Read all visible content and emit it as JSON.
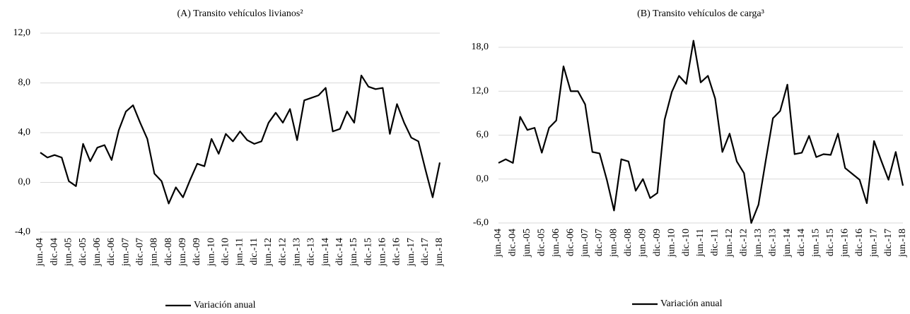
{
  "chart_data": [
    {
      "type": "line",
      "title": "(A) Transito vehículos livianos²",
      "categories": [
        "jun.-04",
        null,
        "dic.-04",
        null,
        "jun.-05",
        null,
        "dic.-05",
        null,
        "jun.-06",
        null,
        "dic.-06",
        null,
        "jun.-07",
        null,
        "dic.-07",
        null,
        "jun.-08",
        null,
        "dic.-08",
        null,
        "jun.-09",
        null,
        "dic.-09",
        null,
        "jun.-10",
        null,
        "dic.-10",
        null,
        "jun.-11",
        null,
        "dic.-11",
        null,
        "jun.-12",
        null,
        "dic.-12",
        null,
        "jun.-13",
        null,
        "dic.-13",
        null,
        "jun.-14",
        null,
        "dic.-14",
        null,
        "jun.-15",
        null,
        "dic.-15",
        null,
        "jun.-16",
        null,
        "dic.-16",
        null,
        "jun.-17",
        null,
        "dic.-17",
        null,
        "jun.-18"
      ],
      "series": [
        {
          "name": "Variación anual",
          "color": "#000000",
          "values": [
            2.4,
            2.0,
            2.2,
            2.0,
            0.1,
            -0.3,
            3.1,
            1.7,
            2.8,
            3.0,
            1.8,
            4.2,
            5.7,
            6.2,
            4.8,
            3.5,
            0.7,
            0.1,
            -1.7,
            -0.4,
            -1.2,
            0.2,
            1.5,
            1.3,
            3.5,
            2.3,
            3.9,
            3.3,
            4.1,
            3.4,
            3.1,
            3.3,
            4.8,
            5.6,
            4.8,
            5.9,
            3.4,
            6.6,
            6.8,
            7.0,
            7.6,
            4.1,
            4.3,
            5.7,
            4.8,
            8.6,
            7.7,
            7.5,
            7.6,
            3.9,
            6.3,
            4.8,
            3.6,
            3.3,
            1.0,
            -1.2,
            1.6
          ]
        }
      ],
      "ylim": [
        -4,
        12
      ],
      "yticks": [
        {
          "value": -4,
          "label": "-4,0"
        },
        {
          "value": 0,
          "label": "0,0"
        },
        {
          "value": 4,
          "label": "4,0"
        },
        {
          "value": 8,
          "label": "8,0"
        },
        {
          "value": 12,
          "label": "12,0"
        }
      ],
      "grid": true,
      "legend": "bottom"
    },
    {
      "type": "line",
      "title": "(B) Transito vehículos de carga³",
      "categories": [
        "jun.-04",
        null,
        "dic.-04",
        null,
        "jun.-05",
        null,
        "dic.-05",
        null,
        "jun.-06",
        null,
        "dic.-06",
        null,
        "jun.-07",
        null,
        "dic.-07",
        null,
        "jun.-08",
        null,
        "dic.-08",
        null,
        "jun.-09",
        null,
        "dic.-09",
        null,
        "jun.-10",
        null,
        "dic.-10",
        null,
        "jun.-11",
        null,
        "dic.-11",
        null,
        "jun.-12",
        null,
        "dic.-12",
        null,
        "jun.-13",
        null,
        "dic.-13",
        null,
        "jun.-14",
        null,
        "dic.-14",
        null,
        "jun.-15",
        null,
        "dic.-15",
        null,
        "jun.-16",
        null,
        "dic.-16",
        null,
        "jun.-17",
        null,
        "dic.-17",
        null,
        "jun.-18"
      ],
      "series": [
        {
          "name": "Variación anual",
          "color": "#000000",
          "values": [
            2.2,
            2.7,
            2.2,
            8.5,
            6.7,
            7.0,
            3.6,
            7.0,
            8.0,
            15.4,
            12.0,
            12.0,
            10.2,
            3.7,
            3.5,
            -0.1,
            -4.3,
            2.7,
            2.4,
            -1.6,
            0.0,
            -2.6,
            -1.9,
            8.1,
            11.9,
            14.1,
            13.0,
            18.9,
            13.2,
            14.1,
            11.0,
            3.7,
            6.2,
            2.4,
            0.8,
            -6.0,
            -3.5,
            2.5,
            8.3,
            9.3,
            12.9,
            3.4,
            3.6,
            5.9,
            3.0,
            3.4,
            3.3,
            6.2,
            1.5,
            0.7,
            -0.1,
            -3.3,
            5.2,
            2.5,
            -0.1,
            3.7,
            -0.9
          ]
        }
      ],
      "ylim": [
        -6,
        18
      ],
      "yticks": [
        {
          "value": -6,
          "label": "-6,0"
        },
        {
          "value": 0,
          "label": "0,0"
        },
        {
          "value": 6,
          "label": "6,0"
        },
        {
          "value": 12,
          "label": "12,0"
        },
        {
          "value": 18,
          "label": "18,0"
        }
      ],
      "grid": true,
      "legend": "bottom"
    }
  ]
}
